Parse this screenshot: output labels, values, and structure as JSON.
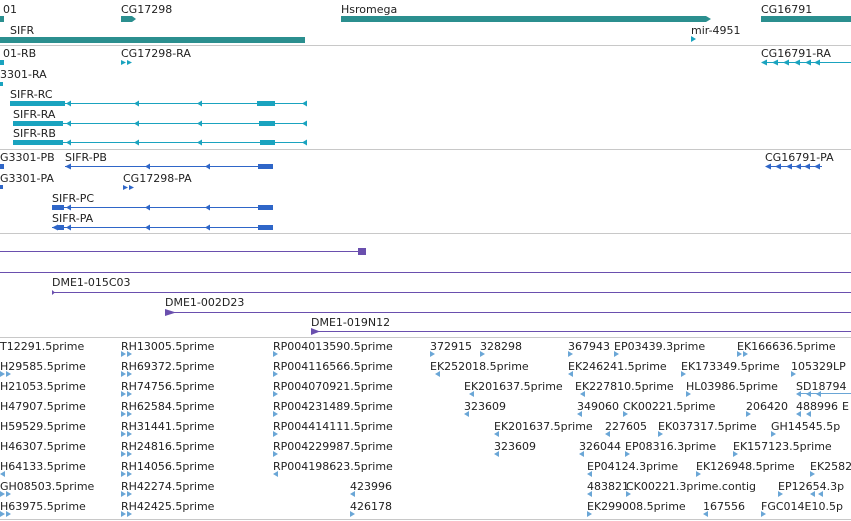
{
  "colors": {
    "gene": "#2b8f8f",
    "transcript": "#1aa3bf",
    "protein": "#2f66c8",
    "clone": "#6a4fae",
    "est": "#6aa6d6",
    "text": "#222222",
    "divider": "#c8c8c8"
  },
  "tracks": {
    "genes": {
      "labels": [
        "01",
        "CG17298",
        "Hsromega",
        "CG16791",
        "SIFR",
        "mir-4951"
      ]
    },
    "transcripts": {
      "labels": [
        "01-RB",
        "CG17298-RA",
        "CG16791-RA",
        "3301-RA",
        "SIFR-RC",
        "SIFR-RA",
        "SIFR-RB"
      ]
    },
    "proteins": {
      "labels": [
        "G3301-PB",
        "SIFR-PB",
        "CG16791-PA",
        "G3301-PA",
        "CG17298-PA",
        "SIFR-PC",
        "SIFR-PA"
      ]
    },
    "clones": {
      "labels": [
        "DME1-015C03",
        "DME1-002D23",
        "DME1-019N12"
      ]
    },
    "ests": {
      "rows": [
        [
          "T12291.5prime",
          "RH13005.5prime",
          "RP004013590.5prime",
          "372915",
          "328298",
          "367943",
          "EP03439.3prime",
          "EK166636.5prime"
        ],
        [
          "H29585.5prime",
          "RH69372.5prime",
          "RP004116566.5prime",
          "EK252018.5prime",
          "EK246241.5prime",
          "EK173349.5prime",
          "105329LP"
        ],
        [
          "H21053.5prime",
          "RH74756.5prime",
          "RP004070921.5prime",
          "EK201637.5prime",
          "EK227810.5prime",
          "HL03986.5prime",
          "SD18794"
        ],
        [
          "H47907.5prime",
          "RH62584.5prime",
          "RP004231489.5prime",
          "323609",
          "349060",
          "CK00221.5prime",
          "206420",
          "488996",
          "E"
        ],
        [
          "H59529.5prime",
          "RH31441.5prime",
          "RP004414111.5prime",
          "EK201637.5prime",
          "227605",
          "EK037317.5prime",
          "GH14545.5p"
        ],
        [
          "H46307.5prime",
          "RH24816.5prime",
          "RP004229987.5prime",
          "323609",
          "326044",
          "EP08316.3prime",
          "EK157123.5prime"
        ],
        [
          "H64133.5prime",
          "RH14056.5prime",
          "RP004198623.5prime",
          "EP04124.3prime",
          "EK126948.5prime",
          "EK2582"
        ],
        [
          "GH08503.5prime",
          "RH42274.5prime",
          "423996",
          "483821",
          "CK00221.3prime.contig",
          "EP12654.3p"
        ],
        [
          "H63975.5prime",
          "RH42425.5prime",
          "426178",
          "EK299008.5prime",
          "167556",
          "FGC014E10.5p"
        ]
      ]
    }
  }
}
